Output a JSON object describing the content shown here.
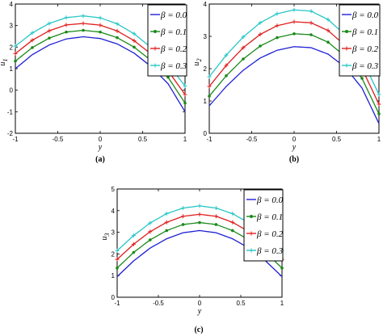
{
  "figure": {
    "background": "#ffffff",
    "frame_color": "#000000"
  },
  "legend": {
    "entries": [
      "β = 0.0",
      "β = 0.1",
      "β = 0.2",
      "β = 0.3"
    ]
  },
  "colors": [
    "#1f1fd6",
    "#1a8a1a",
    "#e01e1e",
    "#28c6c6"
  ],
  "markers": [
    "none",
    "dot",
    "plus",
    "plus"
  ],
  "chart_data": [
    {
      "type": "line",
      "panel_label": "(a)",
      "xlabel": "y",
      "ylabel": "u",
      "ylabel_sub": "1",
      "xlim": [
        -1,
        1
      ],
      "ylim": [
        -2,
        4
      ],
      "xticks": [
        -1,
        -0.5,
        0,
        0.5,
        1
      ],
      "xtick_labels": [
        "-1",
        "-0.5",
        "0",
        "0.5",
        "1"
      ],
      "yticks": [
        -2,
        -1,
        0,
        1,
        2,
        3,
        4
      ],
      "ytick_labels": [
        "-2",
        "-1",
        "0",
        "1",
        "2",
        "3",
        "4"
      ],
      "grid": false,
      "legend_position": "top-right",
      "x": [
        -1,
        -0.8,
        -0.6,
        -0.4,
        -0.2,
        0,
        0.2,
        0.4,
        0.6,
        0.8,
        1
      ],
      "series": [
        {
          "name": "β = 0.0",
          "values": [
            1.0,
            1.65,
            2.1,
            2.38,
            2.48,
            2.4,
            2.15,
            1.72,
            1.1,
            0.3,
            -1.0
          ]
        },
        {
          "name": "β = 0.1",
          "values": [
            1.35,
            1.98,
            2.42,
            2.7,
            2.78,
            2.7,
            2.44,
            2.0,
            1.38,
            0.6,
            -0.6
          ]
        },
        {
          "name": "β = 0.2",
          "values": [
            1.7,
            2.32,
            2.76,
            3.03,
            3.1,
            3.02,
            2.75,
            2.3,
            1.68,
            0.9,
            -0.2
          ]
        },
        {
          "name": "β = 0.3",
          "values": [
            2.05,
            2.66,
            3.1,
            3.37,
            3.45,
            3.36,
            3.08,
            2.62,
            1.98,
            1.2,
            0.2
          ]
        }
      ]
    },
    {
      "type": "line",
      "panel_label": "(b)",
      "xlabel": "y",
      "ylabel": "u",
      "ylabel_sub": "2",
      "xlim": [
        -1,
        1
      ],
      "ylim": [
        0,
        4
      ],
      "xticks": [
        -1,
        -0.5,
        0,
        0.5,
        1
      ],
      "xtick_labels": [
        "-1",
        "-0.5",
        "0",
        "0.5",
        "1"
      ],
      "yticks": [
        0,
        1,
        2,
        3,
        4
      ],
      "ytick_labels": [
        "0",
        "1",
        "2",
        "3",
        "4"
      ],
      "grid": false,
      "legend_position": "top-right",
      "x": [
        -1,
        -0.8,
        -0.6,
        -0.4,
        -0.2,
        0,
        0.2,
        0.4,
        0.6,
        0.8,
        1
      ],
      "series": [
        {
          "name": "β = 0.0",
          "values": [
            0.85,
            1.45,
            1.95,
            2.33,
            2.57,
            2.68,
            2.65,
            2.45,
            2.05,
            1.4,
            0.3
          ]
        },
        {
          "name": "β = 0.1",
          "values": [
            1.15,
            1.78,
            2.3,
            2.7,
            2.96,
            3.08,
            3.05,
            2.82,
            2.38,
            1.7,
            0.6
          ]
        },
        {
          "name": "β = 0.2",
          "values": [
            1.45,
            2.1,
            2.65,
            3.06,
            3.33,
            3.45,
            3.42,
            3.18,
            2.72,
            2.0,
            0.9
          ]
        },
        {
          "name": "β = 0.3",
          "values": [
            1.75,
            2.42,
            2.98,
            3.42,
            3.7,
            3.82,
            3.78,
            3.52,
            3.05,
            2.3,
            1.2
          ]
        }
      ]
    },
    {
      "type": "line",
      "panel_label": "(c)",
      "xlabel": "y",
      "ylabel": "u",
      "ylabel_sub": "3",
      "xlim": [
        -1,
        1
      ],
      "ylim": [
        0,
        5
      ],
      "xticks": [
        -1,
        -0.5,
        0,
        0.5,
        1
      ],
      "xtick_labels": [
        "-1",
        "-0.5",
        "0",
        "0.5",
        "1"
      ],
      "yticks": [
        0,
        1,
        2,
        3,
        4,
        5
      ],
      "ytick_labels": [
        "0",
        "1",
        "2",
        "3",
        "4",
        "5"
      ],
      "grid": false,
      "legend_position": "top-right",
      "x": [
        -1,
        -0.8,
        -0.6,
        -0.4,
        -0.2,
        0,
        0.2,
        0.4,
        0.6,
        0.8,
        1
      ],
      "series": [
        {
          "name": "β = 0.0",
          "values": [
            0.95,
            1.68,
            2.27,
            2.7,
            2.98,
            3.08,
            2.98,
            2.7,
            2.27,
            1.68,
            0.95
          ]
        },
        {
          "name": "β = 0.1",
          "values": [
            1.35,
            2.07,
            2.65,
            3.08,
            3.36,
            3.45,
            3.36,
            3.08,
            2.65,
            2.07,
            1.35
          ]
        },
        {
          "name": "β = 0.2",
          "values": [
            1.75,
            2.45,
            3.03,
            3.46,
            3.74,
            3.83,
            3.74,
            3.46,
            3.03,
            2.45,
            1.75
          ]
        },
        {
          "name": "β = 0.3",
          "values": [
            2.15,
            2.85,
            3.43,
            3.86,
            4.12,
            4.22,
            4.12,
            3.86,
            3.43,
            2.85,
            2.15
          ]
        }
      ]
    }
  ]
}
